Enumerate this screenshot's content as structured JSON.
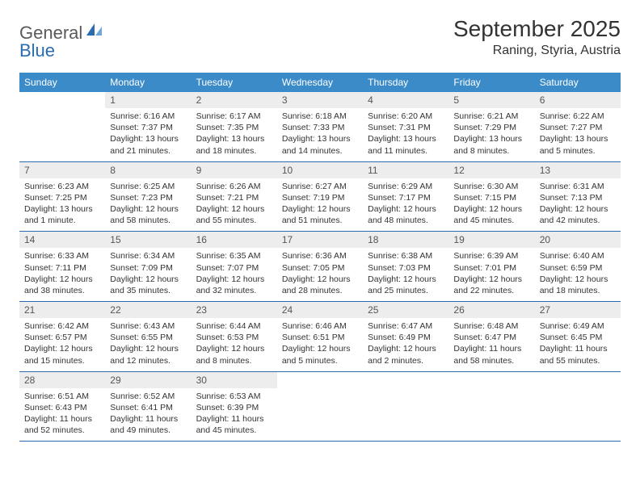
{
  "logo": {
    "word1": "General",
    "word2": "Blue"
  },
  "title": "September 2025",
  "location": "Raning, Styria, Austria",
  "colors": {
    "header_bg": "#3b8bc9",
    "header_text": "#ffffff",
    "rule": "#2a6cb0",
    "daynum_bg": "#ededed",
    "logo_gray": "#5a5a5a",
    "logo_blue": "#2a6cb0"
  },
  "day_names": [
    "Sunday",
    "Monday",
    "Tuesday",
    "Wednesday",
    "Thursday",
    "Friday",
    "Saturday"
  ],
  "weeks": [
    [
      null,
      {
        "n": "1",
        "sr": "6:16 AM",
        "ss": "7:37 PM",
        "dl": "13 hours and 21 minutes."
      },
      {
        "n": "2",
        "sr": "6:17 AM",
        "ss": "7:35 PM",
        "dl": "13 hours and 18 minutes."
      },
      {
        "n": "3",
        "sr": "6:18 AM",
        "ss": "7:33 PM",
        "dl": "13 hours and 14 minutes."
      },
      {
        "n": "4",
        "sr": "6:20 AM",
        "ss": "7:31 PM",
        "dl": "13 hours and 11 minutes."
      },
      {
        "n": "5",
        "sr": "6:21 AM",
        "ss": "7:29 PM",
        "dl": "13 hours and 8 minutes."
      },
      {
        "n": "6",
        "sr": "6:22 AM",
        "ss": "7:27 PM",
        "dl": "13 hours and 5 minutes."
      }
    ],
    [
      {
        "n": "7",
        "sr": "6:23 AM",
        "ss": "7:25 PM",
        "dl": "13 hours and 1 minute."
      },
      {
        "n": "8",
        "sr": "6:25 AM",
        "ss": "7:23 PM",
        "dl": "12 hours and 58 minutes."
      },
      {
        "n": "9",
        "sr": "6:26 AM",
        "ss": "7:21 PM",
        "dl": "12 hours and 55 minutes."
      },
      {
        "n": "10",
        "sr": "6:27 AM",
        "ss": "7:19 PM",
        "dl": "12 hours and 51 minutes."
      },
      {
        "n": "11",
        "sr": "6:29 AM",
        "ss": "7:17 PM",
        "dl": "12 hours and 48 minutes."
      },
      {
        "n": "12",
        "sr": "6:30 AM",
        "ss": "7:15 PM",
        "dl": "12 hours and 45 minutes."
      },
      {
        "n": "13",
        "sr": "6:31 AM",
        "ss": "7:13 PM",
        "dl": "12 hours and 42 minutes."
      }
    ],
    [
      {
        "n": "14",
        "sr": "6:33 AM",
        "ss": "7:11 PM",
        "dl": "12 hours and 38 minutes."
      },
      {
        "n": "15",
        "sr": "6:34 AM",
        "ss": "7:09 PM",
        "dl": "12 hours and 35 minutes."
      },
      {
        "n": "16",
        "sr": "6:35 AM",
        "ss": "7:07 PM",
        "dl": "12 hours and 32 minutes."
      },
      {
        "n": "17",
        "sr": "6:36 AM",
        "ss": "7:05 PM",
        "dl": "12 hours and 28 minutes."
      },
      {
        "n": "18",
        "sr": "6:38 AM",
        "ss": "7:03 PM",
        "dl": "12 hours and 25 minutes."
      },
      {
        "n": "19",
        "sr": "6:39 AM",
        "ss": "7:01 PM",
        "dl": "12 hours and 22 minutes."
      },
      {
        "n": "20",
        "sr": "6:40 AM",
        "ss": "6:59 PM",
        "dl": "12 hours and 18 minutes."
      }
    ],
    [
      {
        "n": "21",
        "sr": "6:42 AM",
        "ss": "6:57 PM",
        "dl": "12 hours and 15 minutes."
      },
      {
        "n": "22",
        "sr": "6:43 AM",
        "ss": "6:55 PM",
        "dl": "12 hours and 12 minutes."
      },
      {
        "n": "23",
        "sr": "6:44 AM",
        "ss": "6:53 PM",
        "dl": "12 hours and 8 minutes."
      },
      {
        "n": "24",
        "sr": "6:46 AM",
        "ss": "6:51 PM",
        "dl": "12 hours and 5 minutes."
      },
      {
        "n": "25",
        "sr": "6:47 AM",
        "ss": "6:49 PM",
        "dl": "12 hours and 2 minutes."
      },
      {
        "n": "26",
        "sr": "6:48 AM",
        "ss": "6:47 PM",
        "dl": "11 hours and 58 minutes."
      },
      {
        "n": "27",
        "sr": "6:49 AM",
        "ss": "6:45 PM",
        "dl": "11 hours and 55 minutes."
      }
    ],
    [
      {
        "n": "28",
        "sr": "6:51 AM",
        "ss": "6:43 PM",
        "dl": "11 hours and 52 minutes."
      },
      {
        "n": "29",
        "sr": "6:52 AM",
        "ss": "6:41 PM",
        "dl": "11 hours and 49 minutes."
      },
      {
        "n": "30",
        "sr": "6:53 AM",
        "ss": "6:39 PM",
        "dl": "11 hours and 45 minutes."
      },
      null,
      null,
      null,
      null
    ]
  ],
  "labels": {
    "sunrise": "Sunrise:",
    "sunset": "Sunset:",
    "daylight": "Daylight:"
  }
}
